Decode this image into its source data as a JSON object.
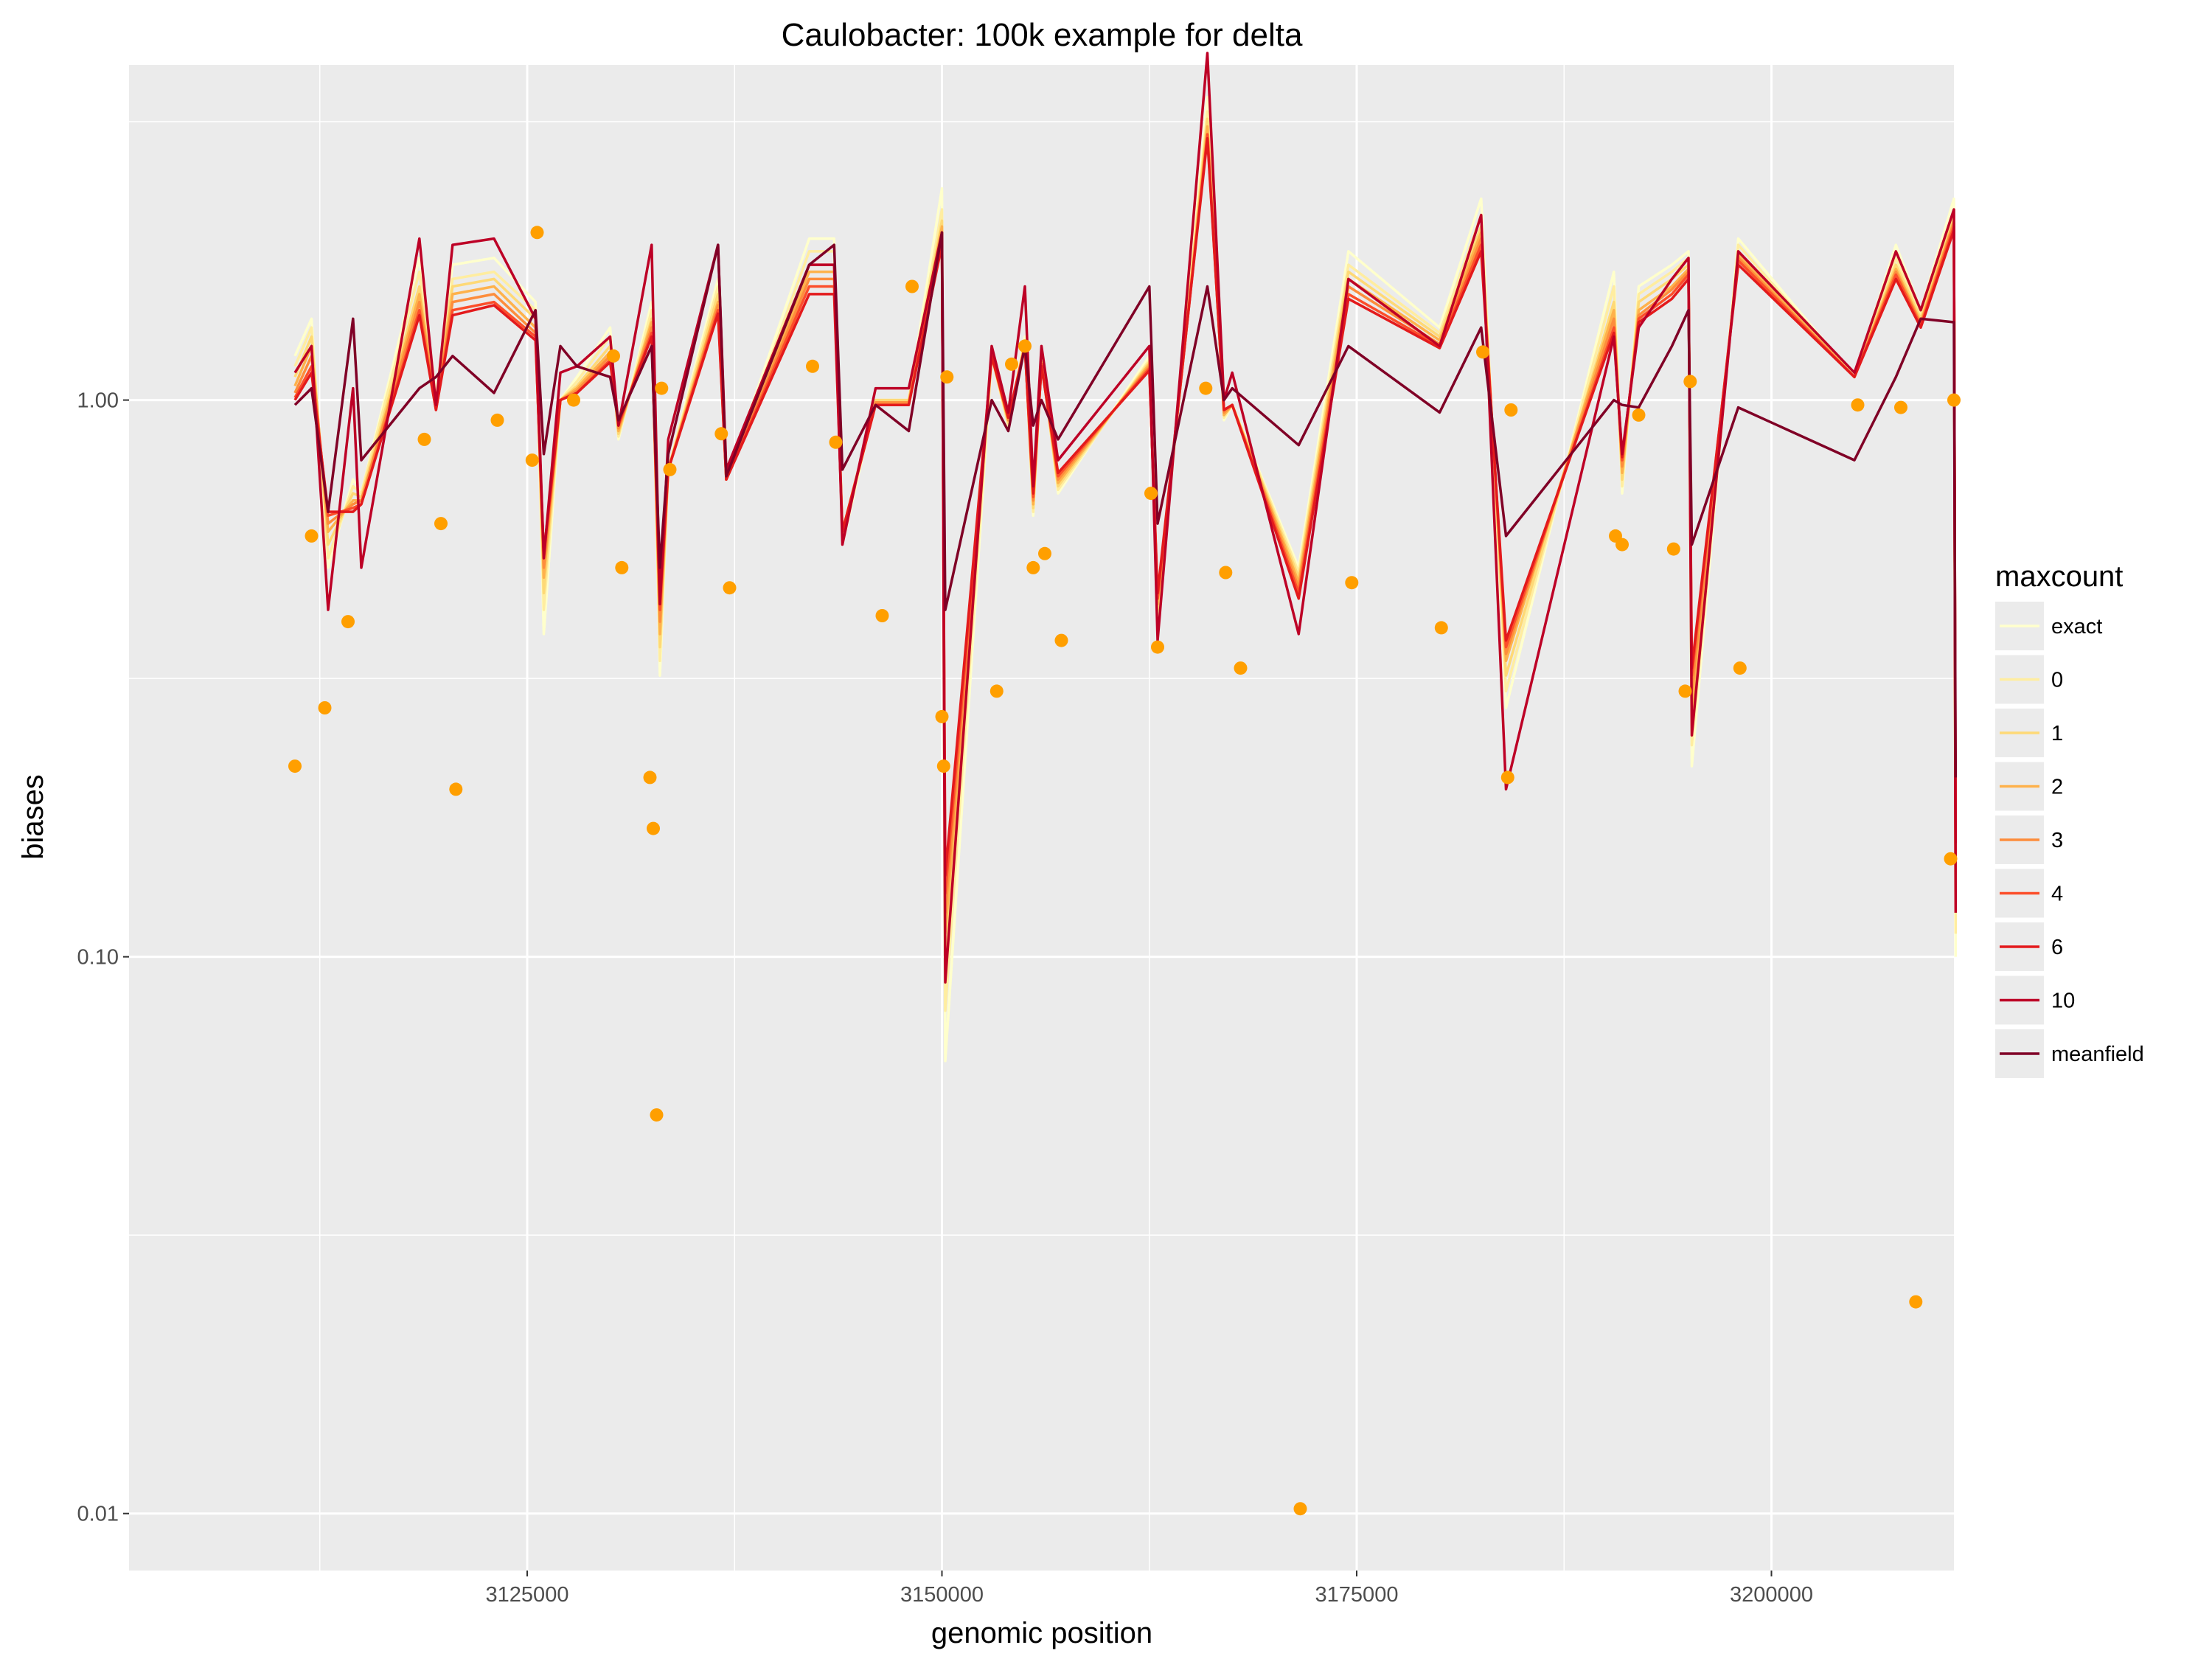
{
  "chart_data": {
    "type": "line",
    "title": "Caulobacter: 100k example for delta",
    "xlabel": "genomic position",
    "ylabel": "biases",
    "xlim": [
      3101000,
      3211000
    ],
    "ylim": [
      0.0079,
      4.0
    ],
    "y_scale": "log10",
    "x_ticks": [
      3125000,
      3150000,
      3175000,
      3200000
    ],
    "x_tick_labels": [
      "3125000",
      "3150000",
      "3175000",
      "3200000"
    ],
    "y_ticks": [
      0.01,
      0.1,
      1.0
    ],
    "y_tick_labels": [
      "0.01",
      "0.10",
      "1.00"
    ],
    "grid": true,
    "legend": {
      "title": "maxcount",
      "position": "right",
      "entries": [
        {
          "label": "exact",
          "color": "#ffffcc"
        },
        {
          "label": "0",
          "color": "#ffeda0"
        },
        {
          "label": "1",
          "color": "#fed976"
        },
        {
          "label": "2",
          "color": "#feb24c"
        },
        {
          "label": "3",
          "color": "#fd8d3c"
        },
        {
          "label": "4",
          "color": "#fc4e2a"
        },
        {
          "label": "6",
          "color": "#e31a1c"
        },
        {
          "label": "10",
          "color": "#bd0026"
        },
        {
          "label": "meanfield",
          "color": "#800026"
        }
      ]
    },
    "x": [
      3111000,
      3112000,
      3113000,
      3114500,
      3115000,
      3118500,
      3119500,
      3120500,
      3123000,
      3125500,
      3126000,
      3127000,
      3128000,
      3130000,
      3130500,
      3132500,
      3133000,
      3133500,
      3136500,
      3137000,
      3142000,
      3143500,
      3144000,
      3146000,
      3148000,
      3150000,
      3150200,
      3153000,
      3154000,
      3155000,
      3155500,
      3156000,
      3157000,
      3162500,
      3163000,
      3166000,
      3167000,
      3167500,
      3171500,
      3174500,
      3180000,
      3182500,
      3184000,
      3190500,
      3191000,
      3192000,
      3194000,
      3195000,
      3195200,
      3198000,
      3205000,
      3207500,
      3209000,
      3211000,
      3211100
    ],
    "series": [
      {
        "name": "exact",
        "values": [
          1.2,
          1.4,
          0.5,
          0.72,
          0.68,
          1.8,
          1.02,
          1.75,
          1.8,
          1.5,
          0.38,
          1.0,
          1.1,
          1.35,
          0.85,
          1.5,
          0.32,
          0.75,
          1.65,
          0.72,
          1.95,
          1.95,
          0.55,
          1.0,
          1.0,
          2.4,
          0.065,
          1.2,
          0.9,
          1.3,
          0.62,
          1.2,
          0.68,
          1.2,
          0.4,
          3.5,
          0.92,
          0.98,
          0.5,
          1.85,
          1.35,
          2.3,
          0.28,
          1.7,
          0.68,
          1.6,
          1.75,
          1.85,
          0.22,
          1.95,
          1.1,
          1.9,
          1.45,
          2.3,
          0.1
        ]
      },
      {
        "name": "0",
        "values": [
          1.15,
          1.35,
          0.52,
          0.7,
          0.68,
          1.7,
          1.0,
          1.65,
          1.7,
          1.45,
          0.42,
          1.0,
          1.08,
          1.3,
          0.86,
          1.45,
          0.34,
          0.75,
          1.6,
          0.72,
          1.85,
          1.85,
          0.56,
          1.0,
          1.0,
          2.2,
          0.08,
          1.2,
          0.9,
          1.28,
          0.63,
          1.18,
          0.69,
          1.18,
          0.41,
          3.3,
          0.93,
          0.98,
          0.49,
          1.75,
          1.32,
          2.15,
          0.3,
          1.6,
          0.7,
          1.55,
          1.7,
          1.8,
          0.24,
          1.9,
          1.1,
          1.8,
          1.42,
          2.2,
          0.11
        ]
      },
      {
        "name": "1",
        "values": [
          1.1,
          1.3,
          0.55,
          0.68,
          0.67,
          1.6,
          0.99,
          1.6,
          1.65,
          1.4,
          0.45,
          1.0,
          1.06,
          1.25,
          0.87,
          1.4,
          0.36,
          0.75,
          1.55,
          0.72,
          1.75,
          1.75,
          0.57,
          1.0,
          1.0,
          2.1,
          0.095,
          1.2,
          0.91,
          1.27,
          0.64,
          1.17,
          0.7,
          1.17,
          0.42,
          3.2,
          0.94,
          0.98,
          0.48,
          1.7,
          1.3,
          2.05,
          0.32,
          1.5,
          0.72,
          1.5,
          1.65,
          1.75,
          0.26,
          1.85,
          1.1,
          1.75,
          1.4,
          2.15,
          0.12
        ]
      },
      {
        "name": "2",
        "values": [
          1.06,
          1.25,
          0.58,
          0.66,
          0.66,
          1.55,
          0.98,
          1.55,
          1.6,
          1.35,
          0.48,
          1.0,
          1.05,
          1.22,
          0.88,
          1.38,
          0.38,
          0.75,
          1.5,
          0.72,
          1.7,
          1.7,
          0.58,
          0.99,
          0.99,
          2.05,
          0.11,
          1.2,
          0.92,
          1.26,
          0.65,
          1.17,
          0.71,
          1.16,
          0.43,
          3.1,
          0.94,
          0.98,
          0.47,
          1.65,
          1.28,
          2.0,
          0.34,
          1.45,
          0.74,
          1.45,
          1.6,
          1.72,
          0.28,
          1.82,
          1.1,
          1.72,
          1.38,
          2.1,
          0.13
        ]
      },
      {
        "name": "3",
        "values": [
          1.03,
          1.2,
          0.6,
          0.65,
          0.66,
          1.5,
          0.97,
          1.5,
          1.55,
          1.32,
          0.5,
          1.0,
          1.04,
          1.2,
          0.89,
          1.35,
          0.4,
          0.75,
          1.48,
          0.72,
          1.65,
          1.65,
          0.58,
          0.99,
          0.99,
          2.0,
          0.12,
          1.2,
          0.92,
          1.25,
          0.66,
          1.16,
          0.72,
          1.15,
          0.44,
          3.0,
          0.95,
          0.98,
          0.46,
          1.6,
          1.26,
          1.95,
          0.35,
          1.4,
          0.76,
          1.42,
          1.58,
          1.7,
          0.3,
          1.8,
          1.1,
          1.7,
          1.37,
          2.08,
          0.14
        ]
      },
      {
        "name": "4",
        "values": [
          1.01,
          1.15,
          0.62,
          0.64,
          0.65,
          1.45,
          0.96,
          1.45,
          1.5,
          1.3,
          0.52,
          1.0,
          1.03,
          1.18,
          0.9,
          1.32,
          0.42,
          0.75,
          1.45,
          0.72,
          1.6,
          1.6,
          0.58,
          0.98,
          0.98,
          1.95,
          0.13,
          1.2,
          0.93,
          1.25,
          0.67,
          1.16,
          0.73,
          1.14,
          0.44,
          3.0,
          0.96,
          0.98,
          0.45,
          1.55,
          1.25,
          1.9,
          0.36,
          1.35,
          0.78,
          1.4,
          1.55,
          1.68,
          0.32,
          1.78,
          1.1,
          1.68,
          1.36,
          2.05,
          0.15
        ]
      },
      {
        "name": "6",
        "values": [
          1.0,
          1.12,
          0.63,
          0.63,
          0.65,
          1.42,
          0.96,
          1.42,
          1.48,
          1.28,
          0.53,
          1.0,
          1.03,
          1.17,
          0.91,
          1.3,
          0.43,
          0.75,
          1.43,
          0.72,
          1.55,
          1.55,
          0.58,
          0.98,
          0.98,
          1.9,
          0.14,
          1.2,
          0.93,
          1.24,
          0.68,
          1.15,
          0.74,
          1.13,
          0.45,
          2.95,
          0.96,
          0.98,
          0.44,
          1.52,
          1.24,
          1.85,
          0.37,
          1.32,
          0.79,
          1.38,
          1.52,
          1.65,
          0.33,
          1.75,
          1.1,
          1.65,
          1.35,
          2.02,
          0.16
        ]
      },
      {
        "name": "10",
        "values": [
          1.12,
          1.25,
          0.42,
          1.05,
          0.5,
          1.95,
          0.98,
          1.9,
          1.95,
          1.4,
          0.52,
          1.12,
          1.15,
          1.3,
          0.9,
          1.9,
          0.43,
          0.85,
          1.9,
          0.75,
          1.75,
          1.75,
          0.55,
          1.05,
          1.05,
          2.0,
          0.09,
          1.25,
          0.95,
          1.6,
          0.7,
          1.25,
          0.78,
          1.25,
          0.37,
          4.2,
          1.0,
          1.12,
          0.38,
          1.65,
          1.25,
          2.15,
          0.2,
          1.3,
          0.8,
          1.35,
          1.65,
          1.8,
          0.25,
          1.85,
          1.12,
          1.85,
          1.45,
          2.2,
          0.12
        ]
      },
      {
        "name": "meanfield",
        "values": [
          0.98,
          1.05,
          0.63,
          1.4,
          0.78,
          1.05,
          1.1,
          1.2,
          1.03,
          1.45,
          0.8,
          1.25,
          1.15,
          1.1,
          0.92,
          1.25,
          0.5,
          0.8,
          1.9,
          0.73,
          1.75,
          1.9,
          0.75,
          0.98,
          0.88,
          2.0,
          0.42,
          1.0,
          0.88,
          1.25,
          0.9,
          1.0,
          0.85,
          1.6,
          0.6,
          1.6,
          1.0,
          1.05,
          0.83,
          1.25,
          0.95,
          1.35,
          0.57,
          1.0,
          0.98,
          0.97,
          1.25,
          1.45,
          0.55,
          0.97,
          0.78,
          1.1,
          1.4,
          1.38,
          0.21
        ]
      }
    ],
    "points": {
      "name": "observed",
      "color": "#ff9f00",
      "x": [
        3111000,
        3112000,
        3112800,
        3114200,
        3118800,
        3119800,
        3120700,
        3123200,
        3125300,
        3125600,
        3127800,
        3130200,
        3130700,
        3132400,
        3132600,
        3132800,
        3133100,
        3133600,
        3136700,
        3137200,
        3142200,
        3143600,
        3146400,
        3148200,
        3150000,
        3150100,
        3150300,
        3153300,
        3154200,
        3155000,
        3155500,
        3156200,
        3157200,
        3162600,
        3163000,
        3165900,
        3167100,
        3168000,
        3171600,
        3174700,
        3180100,
        3182600,
        3184100,
        3184300,
        3190600,
        3191000,
        3192000,
        3194100,
        3194800,
        3195100,
        3198100,
        3205200,
        3207800,
        3208700,
        3210800,
        3211000
      ],
      "y": [
        0.22,
        0.57,
        0.28,
        0.4,
        0.85,
        0.6,
        0.2,
        0.92,
        0.78,
        2.0,
        1.0,
        1.2,
        0.5,
        0.21,
        0.17,
        0.052,
        1.05,
        0.75,
        0.87,
        0.46,
        1.15,
        0.84,
        0.41,
        1.6,
        0.27,
        0.22,
        1.1,
        0.3,
        1.16,
        1.25,
        0.5,
        0.53,
        0.37,
        0.68,
        0.36,
        1.05,
        0.49,
        0.33,
        0.0102,
        0.47,
        0.39,
        1.22,
        0.21,
        0.96,
        0.57,
        0.55,
        0.94,
        0.54,
        0.3,
        1.08,
        0.33,
        0.98,
        0.97,
        0.024,
        0.15,
        1.0
      ]
    }
  }
}
